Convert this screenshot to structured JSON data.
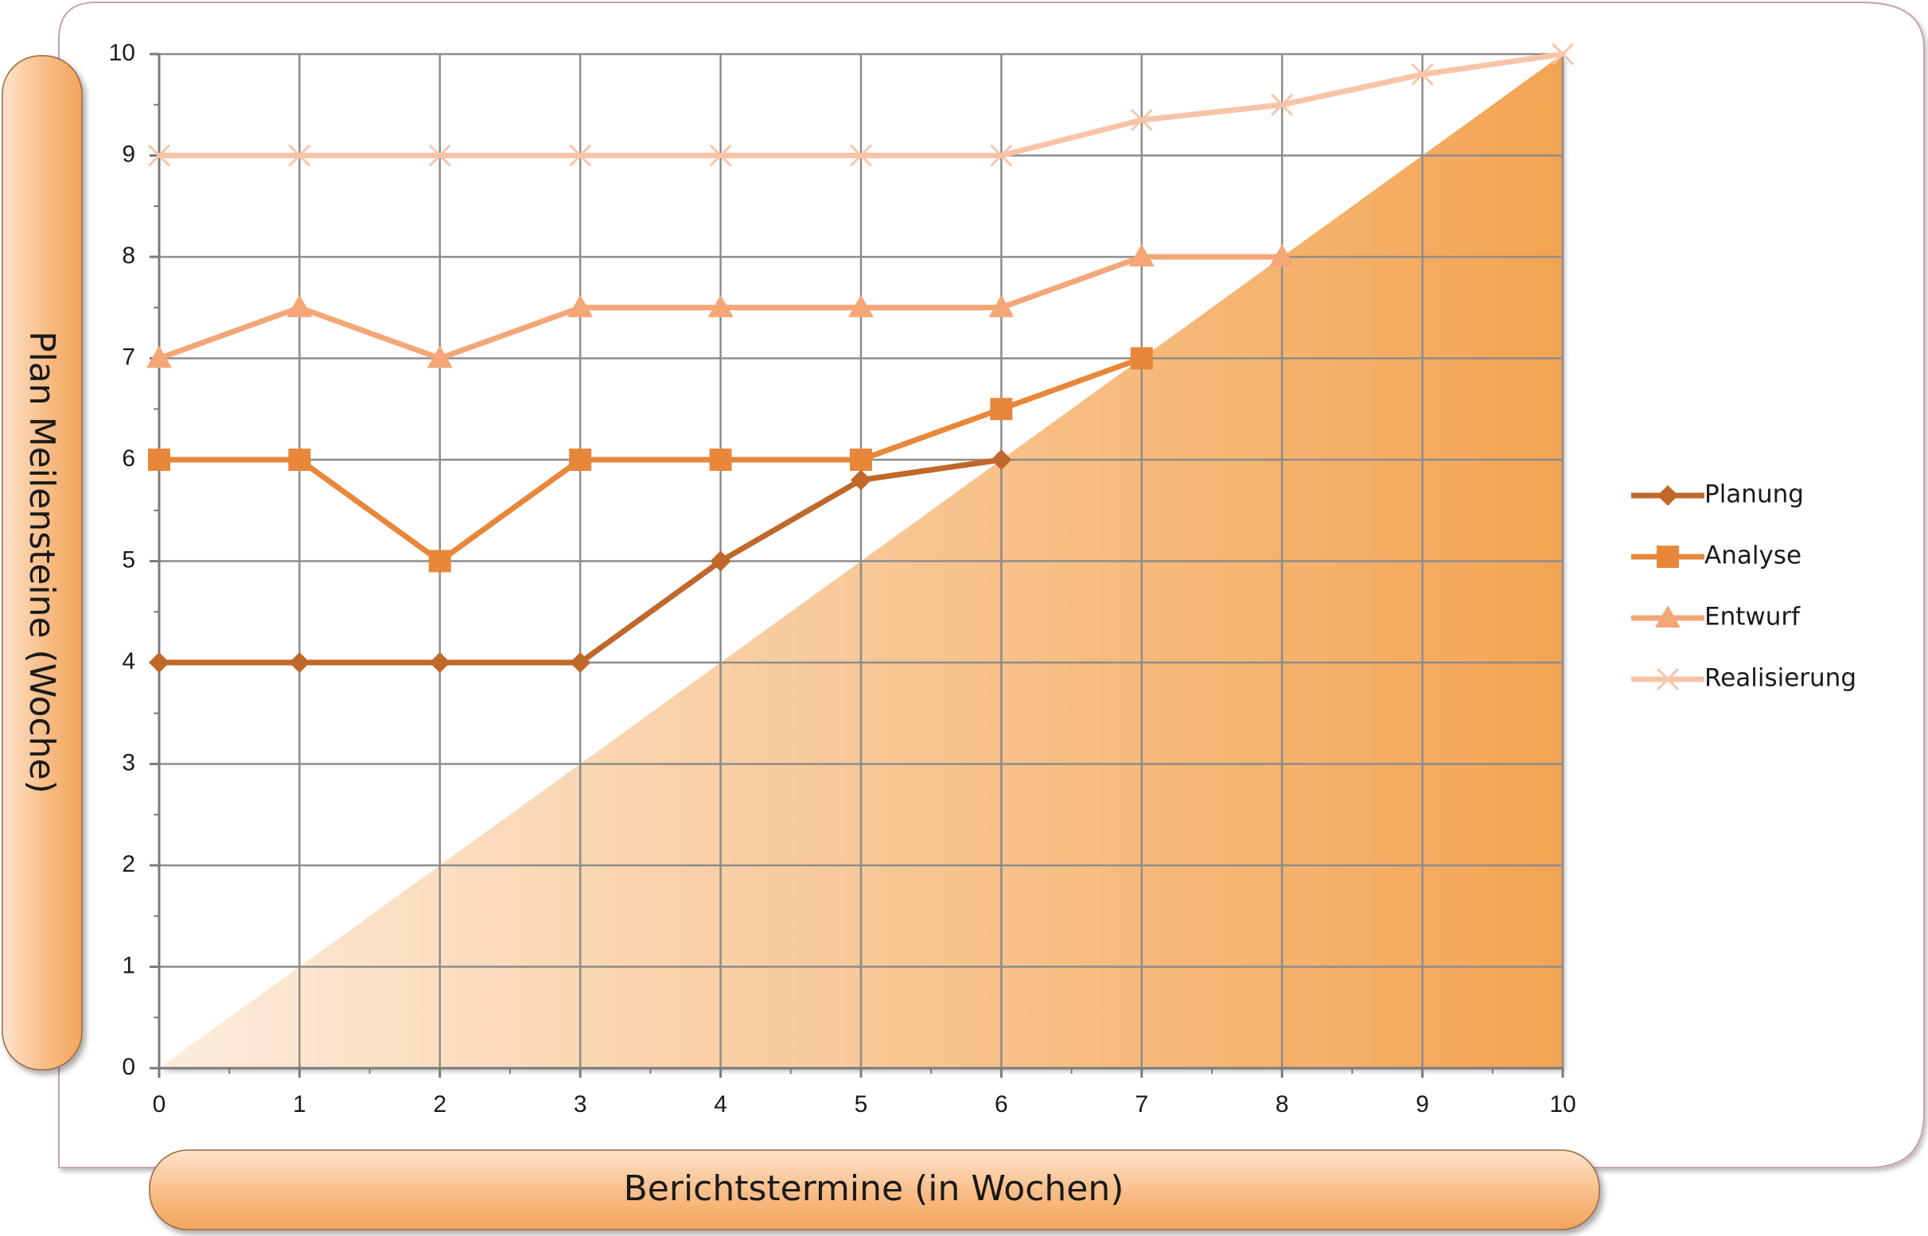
{
  "chart_data": {
    "type": "line",
    "xlabel": "Berichtstermine (in Wochen)",
    "ylabel": "Plan Meilensteine (Woche)",
    "xlim": [
      0,
      10
    ],
    "ylim": [
      0,
      10
    ],
    "x_ticks": [
      0,
      1,
      2,
      3,
      4,
      5,
      6,
      7,
      8,
      9,
      10
    ],
    "y_ticks": [
      0,
      1,
      2,
      3,
      4,
      5,
      6,
      7,
      8,
      9,
      10
    ],
    "grid": true,
    "legend_position": "right",
    "series": [
      {
        "name": "Planung",
        "marker": "diamond",
        "color": "#c0672a",
        "x": [
          0,
          1,
          2,
          3,
          4,
          5,
          6
        ],
        "values": [
          4,
          4,
          4,
          4,
          5,
          5.8,
          6
        ]
      },
      {
        "name": "Analyse",
        "marker": "square",
        "color": "#e8873a",
        "x": [
          0,
          1,
          2,
          3,
          4,
          5,
          6,
          7
        ],
        "values": [
          6,
          6,
          5,
          6,
          6,
          6,
          6.5,
          7
        ]
      },
      {
        "name": "Entwurf",
        "marker": "triangle",
        "color": "#f4a677",
        "x": [
          0,
          1,
          2,
          3,
          4,
          5,
          6,
          7,
          8
        ],
        "values": [
          7,
          7.5,
          7,
          7.5,
          7.5,
          7.5,
          7.5,
          8,
          8
        ]
      },
      {
        "name": "Realisierung",
        "marker": "x",
        "color": "#f8c4a8",
        "x": [
          0,
          1,
          2,
          3,
          4,
          5,
          6,
          7,
          8,
          9,
          10
        ],
        "values": [
          9,
          9,
          9,
          9,
          9,
          9,
          9,
          9.35,
          9.5,
          9.8,
          10
        ]
      }
    ],
    "shaded_region": "diagonal triangle below y = x, orange gradient"
  }
}
